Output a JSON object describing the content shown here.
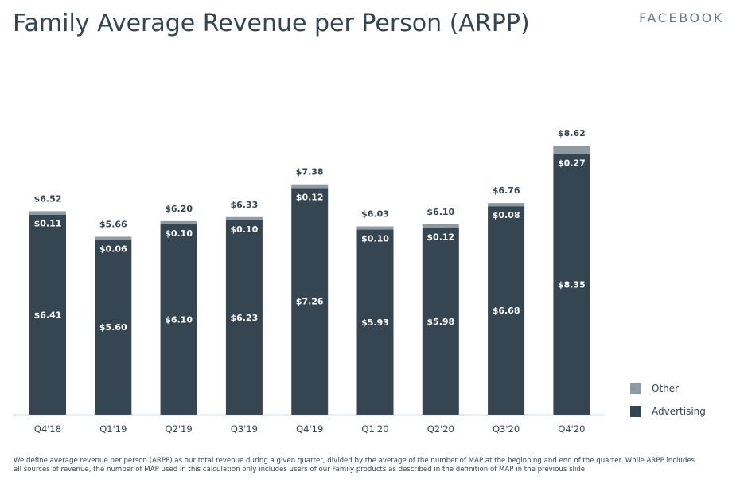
{
  "page": {
    "title": "Family Average Revenue per Person (ARPP)",
    "brand": "FACEBOOK",
    "footnote": "We define average revenue per person (ARPP) as our total revenue during a given quarter, divided by the average of the number of MAP at the beginning and end of the quarter. While ARPP includes all sources of revenue, the number of MAP used in this calculation only includes users of our Family products as described in the definition of MAP in the previous slide."
  },
  "colors": {
    "advertising": "#354551",
    "other": "#8e9aa4",
    "axis": "#6b7780",
    "text": "#35454f"
  },
  "chart_data": {
    "type": "bar",
    "stacked": true,
    "categories": [
      "Q4'18",
      "Q1'19",
      "Q2'19",
      "Q3'19",
      "Q4'19",
      "Q1'20",
      "Q2'20",
      "Q3'20",
      "Q4'20"
    ],
    "series": [
      {
        "name": "Advertising",
        "values": [
          6.41,
          5.6,
          6.1,
          6.23,
          7.26,
          5.93,
          5.98,
          6.68,
          8.35
        ],
        "labels": [
          "$6.41",
          "$5.60",
          "$6.10",
          "$6.23",
          "$7.26",
          "$5.93",
          "$5.98",
          "$6.68",
          "$8.35"
        ]
      },
      {
        "name": "Other",
        "values": [
          0.11,
          0.06,
          0.1,
          0.1,
          0.12,
          0.1,
          0.12,
          0.08,
          0.27
        ],
        "labels": [
          "$0.11",
          "$0.06",
          "$0.10",
          "$0.10",
          "$0.12",
          "$0.10",
          "$0.12",
          "$0.08",
          "$0.27"
        ]
      }
    ],
    "totals": [
      6.52,
      5.66,
      6.2,
      6.33,
      7.38,
      6.03,
      6.1,
      6.76,
      8.62
    ],
    "total_labels": [
      "$6.52",
      "$5.66",
      "$6.20",
      "$6.33",
      "$7.38",
      "$6.03",
      "$6.10",
      "$6.76",
      "$8.62"
    ],
    "legend": [
      "Other",
      "Advertising"
    ],
    "legend_position": "right",
    "grid": false
  }
}
